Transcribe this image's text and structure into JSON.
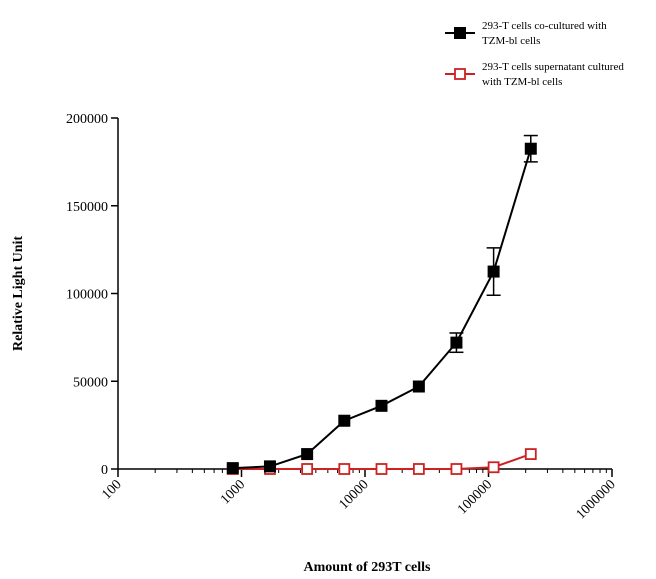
{
  "chart_data": {
    "type": "line",
    "title": "",
    "xlabel": "Amount of 293T cells",
    "ylabel": "Relative Light Unit",
    "x_scale": "log",
    "xlim": [
      100,
      1000000
    ],
    "ylim": [
      0,
      200000
    ],
    "x_ticks": [
      100,
      1000,
      10000,
      100000,
      1000000
    ],
    "x_tick_labels": [
      "100",
      "1000",
      "10000",
      "100000",
      "1000000"
    ],
    "y_ticks": [
      0,
      50000,
      100000,
      150000,
      200000
    ],
    "y_tick_labels": [
      "0",
      "50000",
      "100000",
      "150000",
      "200000"
    ],
    "grid": false,
    "legend_position": "top-right",
    "series": [
      {
        "name": "293-T cells co-cultured with TZM-bl cells",
        "legend_lines": [
          "293-T cells co-cultured with",
          "TZM-bl cells"
        ],
        "color": "#000000",
        "marker": "filled-square",
        "x": [
          850,
          1700,
          3400,
          6800,
          13600,
          27300,
          55000,
          110000,
          220000
        ],
        "y": [
          500,
          1500,
          8500,
          27500,
          36000,
          47000,
          72000,
          112500,
          182500
        ],
        "error": [
          0,
          0,
          0,
          0,
          0,
          0,
          5500,
          13500,
          7500
        ]
      },
      {
        "name": "293-T cells supernatant cultured with TZM-bl cells",
        "legend_lines": [
          "293-T cells supernatant cultured",
          "with TZM-bl cells"
        ],
        "color": "#cc2222",
        "marker": "open-square",
        "x": [
          850,
          1700,
          3400,
          6800,
          13600,
          27300,
          55000,
          110000,
          220000
        ],
        "y": [
          0,
          0,
          0,
          0,
          0,
          0,
          0,
          1000,
          8500
        ],
        "error": [
          0,
          0,
          0,
          0,
          0,
          0,
          0,
          0,
          0
        ]
      }
    ]
  }
}
